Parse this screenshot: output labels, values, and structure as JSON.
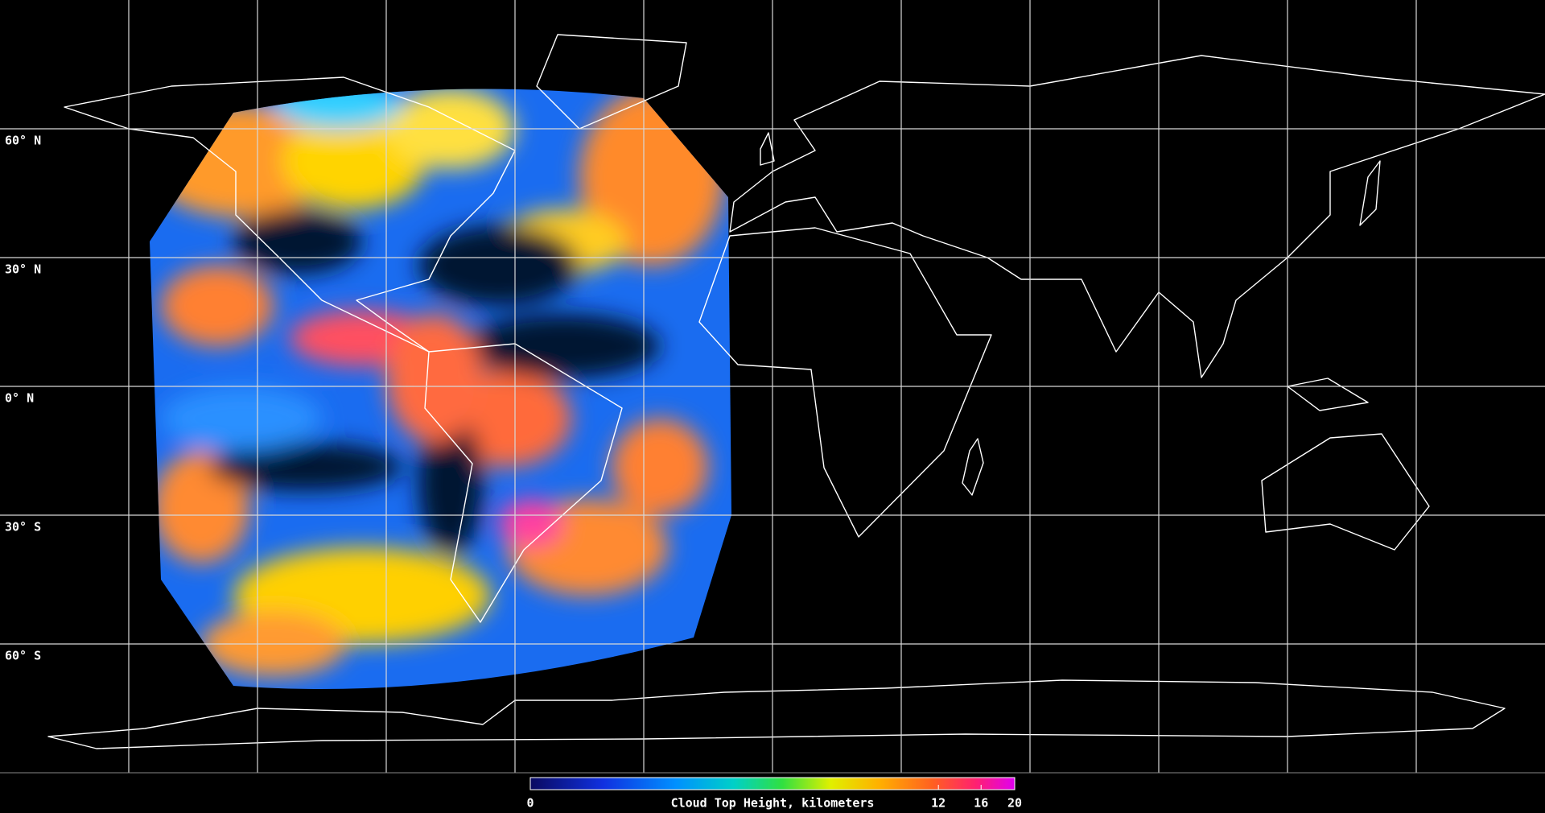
{
  "map": {
    "xlim": [
      -180,
      180
    ],
    "ylim": [
      -90,
      90
    ],
    "lat_lines": [
      {
        "value": 60,
        "label": "60° N"
      },
      {
        "value": 30,
        "label": "30° N"
      },
      {
        "value": 0,
        "label": "0° N"
      },
      {
        "value": -30,
        "label": "30° S"
      },
      {
        "value": -60,
        "label": "60° S"
      }
    ],
    "lon_lines": [
      -150,
      -120,
      -90,
      -60,
      -30,
      0,
      30,
      60,
      90,
      120,
      150
    ],
    "colorbar": {
      "label": "Cloud Top Height, kilometers",
      "range": [
        0,
        20
      ],
      "ticks": [
        0,
        12,
        16,
        20
      ],
      "scale": "log"
    }
  }
}
